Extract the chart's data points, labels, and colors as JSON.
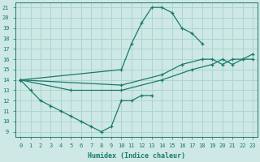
{
  "background_color": "#cde8e5",
  "grid_color": "#aed4d0",
  "line_color": "#1a7a6e",
  "xlabel": "Humidex (Indice chaleur)",
  "xlim": [
    -0.5,
    23.5
  ],
  "ylim": [
    8.5,
    21.5
  ],
  "xticks": [
    0,
    1,
    2,
    3,
    4,
    5,
    6,
    7,
    8,
    9,
    10,
    11,
    12,
    13,
    14,
    15,
    16,
    17,
    18,
    19,
    20,
    21,
    22,
    23
  ],
  "yticks": [
    9,
    10,
    11,
    12,
    13,
    14,
    15,
    16,
    17,
    18,
    19,
    20,
    21
  ],
  "line1_x": [
    0,
    10,
    11,
    12,
    13,
    14,
    15,
    16,
    17,
    18
  ],
  "line1_y": [
    14,
    15,
    17.5,
    19.5,
    21,
    21,
    20.5,
    19,
    18.5,
    17.5
  ],
  "line2_x": [
    0,
    1,
    2,
    3,
    4,
    5,
    6,
    7,
    8,
    9,
    10,
    11,
    12,
    13
  ],
  "line2_y": [
    14,
    13,
    12,
    11.5,
    11,
    10.5,
    10,
    9.5,
    9,
    9.5,
    12,
    12,
    12.5,
    12.5
  ],
  "line3a_x": [
    0,
    10,
    14,
    16,
    18,
    19,
    20,
    21,
    22,
    23
  ],
  "line3a_y": [
    14,
    13.5,
    14.5,
    15.5,
    16,
    16,
    15.5,
    16,
    16,
    16
  ],
  "line3b_x": [
    0,
    5,
    10,
    14,
    17,
    19,
    20,
    21,
    22,
    23
  ],
  "line3b_y": [
    14,
    13,
    13,
    14,
    15,
    15.5,
    16,
    15.5,
    16,
    16.5
  ]
}
